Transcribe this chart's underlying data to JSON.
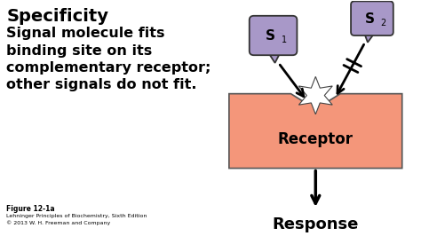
{
  "bg_color": "#ffffff",
  "title": "Specificity",
  "body_text": "Signal molecule fits\nbinding site on its\ncomplementary receptor;\nother signals do not fit.",
  "title_fontsize": 14,
  "body_fontsize": 11.5,
  "receptor_color": "#f4967a",
  "receptor_label": "Receptor",
  "receptor_fontsize": 12,
  "response_label": "Response",
  "response_fontsize": 13,
  "s1_label": "S",
  "s2_label": "S",
  "s1_sub": "1",
  "s2_sub": "2",
  "signal_color": "#a898c8",
  "footer_line1": "Figure 12-1a",
  "footer_line2": "Lehninger Principles of Biochemistry, Sixth Edition",
  "footer_line3": "© 2013 W. H. Freeman and Company",
  "footer_fs1": 5.5,
  "footer_fs2": 4.5
}
